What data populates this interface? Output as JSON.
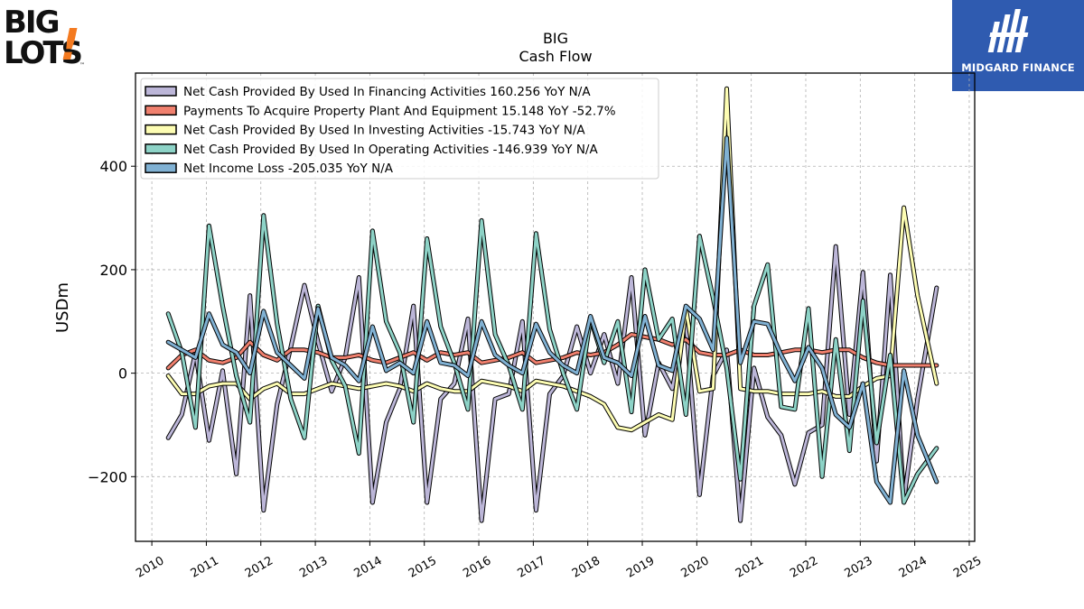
{
  "brand": {
    "logo_line1": "BIG",
    "logo_line2": "LOTS",
    "logo_mark": "!",
    "trademark": "™"
  },
  "partner": {
    "name": "MIDGARD FINANCE"
  },
  "chart_data": {
    "type": "line",
    "title": "BIG",
    "subtitle": "Cash Flow",
    "ylabel": "USDm",
    "xlabel": "",
    "xlim": [
      2009.7,
      2025.1
    ],
    "ylim": [
      -325,
      580
    ],
    "xticks": [
      2010,
      2011,
      2012,
      2013,
      2014,
      2015,
      2016,
      2017,
      2018,
      2019,
      2020,
      2021,
      2022,
      2023,
      2024,
      2025
    ],
    "yticks": [
      -200,
      0,
      200,
      400
    ],
    "ytick_labels": [
      "−200",
      "0",
      "200",
      "400"
    ],
    "grid": true,
    "legend_position": "top-left",
    "series": [
      {
        "name": "Net Cash Provided By Used In Financing Activities",
        "legend": "Net Cash Provided By Used In Financing Activities  160.256 YoY N/A",
        "color": "#bcb6d8",
        "x": [
          2010.3,
          2010.55,
          2010.8,
          2011.05,
          2011.3,
          2011.55,
          2011.8,
          2012.05,
          2012.3,
          2012.55,
          2012.8,
          2013.05,
          2013.3,
          2013.55,
          2013.8,
          2014.05,
          2014.3,
          2014.55,
          2014.8,
          2015.05,
          2015.3,
          2015.55,
          2015.8,
          2016.05,
          2016.3,
          2016.55,
          2016.8,
          2017.05,
          2017.3,
          2017.55,
          2017.8,
          2018.05,
          2018.3,
          2018.55,
          2018.8,
          2019.05,
          2019.3,
          2019.55,
          2019.8,
          2020.05,
          2020.3,
          2020.55,
          2020.8,
          2021.05,
          2021.3,
          2021.55,
          2021.8,
          2022.05,
          2022.3,
          2022.55,
          2022.8,
          2023.05,
          2023.3,
          2023.55,
          2023.8,
          2024.05,
          2024.4
        ],
        "values": [
          -125,
          -80,
          40,
          -130,
          5,
          -195,
          150,
          -265,
          -60,
          50,
          170,
          60,
          -35,
          30,
          185,
          -250,
          -95,
          -30,
          130,
          -250,
          -50,
          -20,
          105,
          -285,
          -50,
          -40,
          100,
          -265,
          -40,
          -5,
          90,
          0,
          75,
          -20,
          185,
          -120,
          20,
          -30,
          100,
          -235,
          -5,
          45,
          -285,
          10,
          -85,
          -120,
          -215,
          -115,
          -100,
          245,
          -80,
          195,
          -170,
          190,
          -245,
          -50,
          165
        ]
      },
      {
        "name": "Payments To Acquire Property Plant And Equipment",
        "legend": "Payments To Acquire Property Plant And Equipment  15.148 YoY -52.7%",
        "color": "#f0806e",
        "x": [
          2010.3,
          2010.55,
          2010.8,
          2011.05,
          2011.3,
          2011.55,
          2011.8,
          2012.05,
          2012.3,
          2012.55,
          2012.8,
          2013.05,
          2013.3,
          2013.55,
          2013.8,
          2014.05,
          2014.3,
          2014.55,
          2014.8,
          2015.05,
          2015.3,
          2015.55,
          2015.8,
          2016.05,
          2016.3,
          2016.55,
          2016.8,
          2017.05,
          2017.3,
          2017.55,
          2017.8,
          2018.05,
          2018.3,
          2018.55,
          2018.8,
          2019.05,
          2019.3,
          2019.55,
          2019.8,
          2020.05,
          2020.3,
          2020.55,
          2020.8,
          2021.05,
          2021.3,
          2021.55,
          2021.8,
          2022.05,
          2022.3,
          2022.55,
          2022.8,
          2023.05,
          2023.3,
          2023.55,
          2023.8,
          2024.05,
          2024.4
        ],
        "values": [
          10,
          35,
          45,
          25,
          20,
          30,
          60,
          35,
          25,
          45,
          45,
          40,
          30,
          30,
          35,
          25,
          20,
          30,
          40,
          25,
          40,
          35,
          40,
          20,
          25,
          30,
          40,
          20,
          25,
          30,
          40,
          35,
          40,
          55,
          75,
          70,
          65,
          55,
          65,
          40,
          35,
          35,
          45,
          35,
          35,
          40,
          45,
          45,
          40,
          45,
          45,
          30,
          20,
          15,
          15,
          15,
          15
        ]
      },
      {
        "name": "Net Cash Provided By Used In Investing Activities",
        "legend": "Net Cash Provided By Used In Investing Activities  -15.743 YoY N/A",
        "color": "#fdfdb3",
        "x": [
          2010.3,
          2010.55,
          2010.8,
          2011.05,
          2011.3,
          2011.55,
          2011.8,
          2012.05,
          2012.3,
          2012.55,
          2012.8,
          2013.05,
          2013.3,
          2013.55,
          2013.8,
          2014.05,
          2014.3,
          2014.55,
          2014.8,
          2015.05,
          2015.3,
          2015.55,
          2015.8,
          2016.05,
          2016.3,
          2016.55,
          2016.8,
          2017.05,
          2017.3,
          2017.55,
          2017.8,
          2018.05,
          2018.3,
          2018.55,
          2018.8,
          2019.05,
          2019.3,
          2019.55,
          2019.8,
          2020.05,
          2020.3,
          2020.55,
          2020.8,
          2021.05,
          2021.3,
          2021.55,
          2021.8,
          2022.05,
          2022.3,
          2022.55,
          2022.8,
          2023.05,
          2023.3,
          2023.55,
          2023.8,
          2024.05,
          2024.4
        ],
        "values": [
          -5,
          -40,
          -40,
          -25,
          -20,
          -20,
          -50,
          -30,
          -20,
          -40,
          -40,
          -30,
          -20,
          -25,
          -30,
          -25,
          -20,
          -25,
          -35,
          -20,
          -30,
          -35,
          -35,
          -15,
          -20,
          -25,
          -35,
          -15,
          -20,
          -25,
          -35,
          -45,
          -60,
          -105,
          -110,
          -95,
          -80,
          -90,
          125,
          -35,
          -30,
          550,
          -30,
          -35,
          -35,
          -40,
          -40,
          -40,
          -35,
          -45,
          -45,
          -25,
          -10,
          -5,
          320,
          150,
          -20
        ]
      },
      {
        "name": "Net Cash Provided By Used In Operating Activities",
        "legend": "Net Cash Provided By Used In Operating Activities  -146.939 YoY N/A",
        "color": "#8dd3c7",
        "x": [
          2010.3,
          2010.55,
          2010.8,
          2011.05,
          2011.3,
          2011.55,
          2011.8,
          2012.05,
          2012.3,
          2012.55,
          2012.8,
          2013.05,
          2013.3,
          2013.55,
          2013.8,
          2014.05,
          2014.3,
          2014.55,
          2014.8,
          2015.05,
          2015.3,
          2015.55,
          2015.8,
          2016.05,
          2016.3,
          2016.55,
          2016.8,
          2017.05,
          2017.3,
          2017.55,
          2017.8,
          2018.05,
          2018.3,
          2018.55,
          2018.8,
          2019.05,
          2019.3,
          2019.55,
          2019.8,
          2020.05,
          2020.3,
          2020.55,
          2020.8,
          2021.05,
          2021.3,
          2021.55,
          2021.8,
          2022.05,
          2022.3,
          2022.55,
          2022.8,
          2023.05,
          2023.3,
          2023.55,
          2023.8,
          2024.05,
          2024.4
        ],
        "values": [
          115,
          40,
          -105,
          285,
          130,
          -5,
          -95,
          305,
          95,
          -50,
          -125,
          130,
          25,
          -25,
          -155,
          275,
          100,
          40,
          -95,
          260,
          90,
          20,
          -70,
          295,
          75,
          15,
          -70,
          270,
          85,
          0,
          -70,
          105,
          20,
          100,
          -75,
          200,
          65,
          105,
          -80,
          265,
          145,
          10,
          -205,
          130,
          210,
          -65,
          -70,
          125,
          -200,
          65,
          -150,
          140,
          -135,
          35,
          -250,
          -195,
          -145
        ]
      },
      {
        "name": "Net Income Loss",
        "legend": "Net Income Loss  -205.035 YoY N/A",
        "color": "#80b1d3",
        "x": [
          2010.3,
          2010.55,
          2010.8,
          2011.05,
          2011.3,
          2011.55,
          2011.8,
          2012.05,
          2012.3,
          2012.55,
          2012.8,
          2013.05,
          2013.3,
          2013.55,
          2013.8,
          2014.05,
          2014.3,
          2014.55,
          2014.8,
          2015.05,
          2015.3,
          2015.55,
          2015.8,
          2016.05,
          2016.3,
          2016.55,
          2016.8,
          2017.05,
          2017.3,
          2017.55,
          2017.8,
          2018.05,
          2018.3,
          2018.55,
          2018.8,
          2019.05,
          2019.3,
          2019.55,
          2019.8,
          2020.05,
          2020.3,
          2020.55,
          2020.8,
          2021.05,
          2021.3,
          2021.55,
          2021.8,
          2022.05,
          2022.3,
          2022.55,
          2022.8,
          2023.05,
          2023.3,
          2023.55,
          2023.8,
          2024.05,
          2024.4
        ],
        "values": [
          60,
          45,
          30,
          115,
          55,
          40,
          0,
          120,
          40,
          15,
          -10,
          125,
          30,
          15,
          -15,
          90,
          5,
          20,
          0,
          100,
          20,
          15,
          -5,
          100,
          35,
          15,
          0,
          95,
          40,
          15,
          0,
          110,
          30,
          20,
          -5,
          110,
          15,
          5,
          130,
          105,
          45,
          455,
          20,
          100,
          95,
          35,
          -15,
          50,
          10,
          -80,
          -105,
          -20,
          -210,
          -250,
          5,
          -120,
          -210
        ]
      }
    ]
  }
}
